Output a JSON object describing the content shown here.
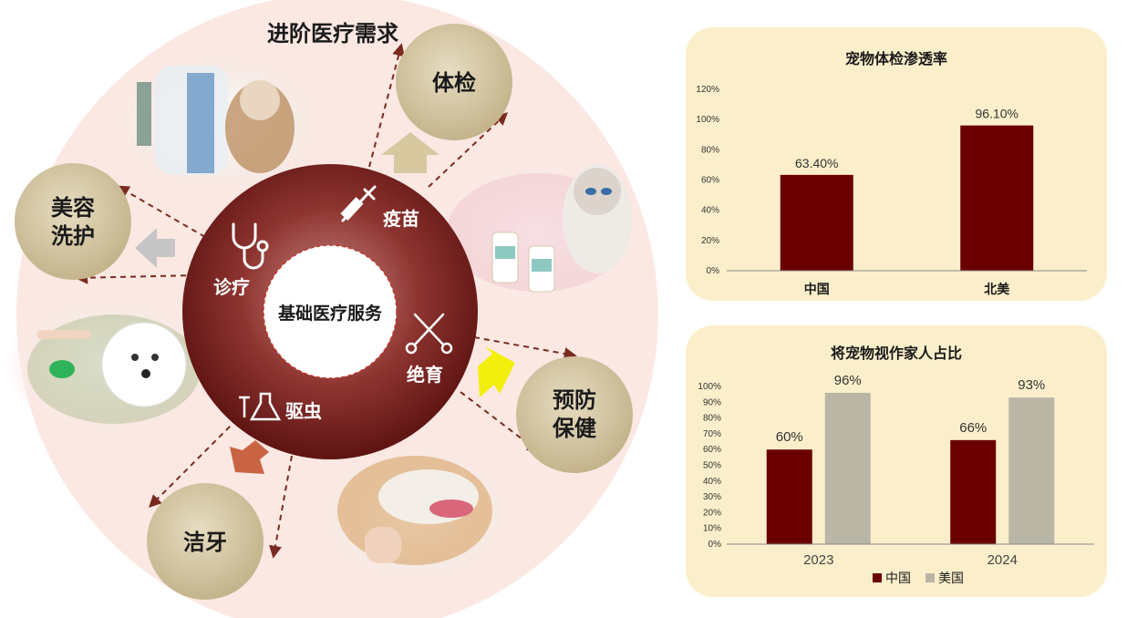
{
  "diagram": {
    "title": "进阶医疗需求",
    "center": "基础医疗服务",
    "ring_items": [
      {
        "label": "诊疗",
        "icon": "stethoscope-icon"
      },
      {
        "label": "疫苗",
        "icon": "syringe-icon"
      },
      {
        "label": "绝育",
        "icon": "scissors-icon"
      },
      {
        "label": "驱虫",
        "icon": "flask-icon"
      }
    ],
    "outer_items": [
      {
        "label": "体检"
      },
      {
        "label": "美容",
        "label2": "洗护"
      },
      {
        "label": "预防",
        "label2": "保健"
      },
      {
        "label": "洁牙"
      }
    ],
    "colors": {
      "ring": "#7a1e1c",
      "outer_circle": "#d1c4a1",
      "background_disc": "#fbe8e3",
      "arrow_tan": "#d8c8a0",
      "arrow_gray": "#c6c6c6",
      "arrow_yellow": "#f3ef0d",
      "arrow_red": "#c86444"
    }
  },
  "chart_data": [
    {
      "type": "bar",
      "title": "宠物体检渗透率",
      "categories": [
        "中国",
        "北美"
      ],
      "values": [
        63.4,
        96.1
      ],
      "data_labels": [
        "63.40%",
        "96.10%"
      ],
      "yticks": [
        "0%",
        "20%",
        "40%",
        "60%",
        "80%",
        "100%",
        "120%"
      ],
      "ylim": [
        0,
        120
      ],
      "color": "#6b0000"
    },
    {
      "type": "bar",
      "title": "将宠物视作家人占比",
      "categories": [
        "2023",
        "2024"
      ],
      "series": [
        {
          "name": "中国",
          "values": [
            60,
            66
          ],
          "labels": [
            "60%",
            "66%"
          ],
          "color": "#6b0000"
        },
        {
          "name": "美国",
          "values": [
            96,
            93
          ],
          "labels": [
            "96%",
            "93%"
          ],
          "color": "#b9b6a5"
        }
      ],
      "yticks": [
        "0%",
        "10%",
        "20%",
        "30%",
        "40%",
        "50%",
        "60%",
        "70%",
        "80%",
        "90%",
        "100%"
      ],
      "ylim": [
        0,
        100
      ],
      "legend": "bottom"
    }
  ]
}
